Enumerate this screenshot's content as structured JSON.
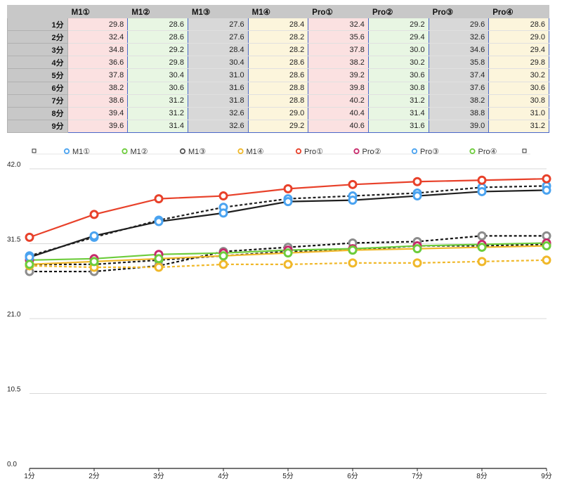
{
  "table": {
    "columns": [
      "",
      "M1①",
      "M1②",
      "M1③",
      "M1④",
      "Pro①",
      "Pro②",
      "Pro③",
      "Pro④"
    ],
    "rows": [
      {
        "label": "1分",
        "values": [
          "29.8",
          "28.6",
          "27.6",
          "28.4",
          "32.4",
          "29.2",
          "29.6",
          "28.6"
        ]
      },
      {
        "label": "2分",
        "values": [
          "32.4",
          "28.6",
          "27.6",
          "28.2",
          "35.6",
          "29.4",
          "32.6",
          "29.0"
        ]
      },
      {
        "label": "3分",
        "values": [
          "34.8",
          "29.2",
          "28.4",
          "28.2",
          "37.8",
          "30.0",
          "34.6",
          "29.4"
        ]
      },
      {
        "label": "4分",
        "values": [
          "36.6",
          "29.8",
          "30.4",
          "28.6",
          "38.2",
          "30.2",
          "35.8",
          "29.8"
        ]
      },
      {
        "label": "5分",
        "values": [
          "37.8",
          "30.4",
          "31.0",
          "28.6",
          "39.2",
          "30.6",
          "37.4",
          "30.2"
        ]
      },
      {
        "label": "6分",
        "values": [
          "38.2",
          "30.6",
          "31.6",
          "28.8",
          "39.8",
          "30.8",
          "37.6",
          "30.6"
        ]
      },
      {
        "label": "7分",
        "values": [
          "38.6",
          "31.2",
          "31.8",
          "28.8",
          "40.2",
          "31.2",
          "38.2",
          "30.8"
        ]
      },
      {
        "label": "8分",
        "values": [
          "39.4",
          "31.2",
          "32.6",
          "29.0",
          "40.4",
          "31.4",
          "38.8",
          "31.0"
        ]
      },
      {
        "label": "9分",
        "values": [
          "39.6",
          "31.4",
          "32.6",
          "29.2",
          "40.6",
          "31.6",
          "39.0",
          "31.2"
        ]
      }
    ]
  },
  "chart_data": {
    "type": "line",
    "categories": [
      "1分",
      "2分",
      "3分",
      "4分",
      "5分",
      "6分",
      "7分",
      "8分",
      "9分"
    ],
    "ylim": [
      0,
      42
    ],
    "yticks": [
      0.0,
      10.5,
      21.0,
      31.5,
      42.0
    ],
    "ytick_labels": [
      "0.0",
      "10.5",
      "21.0",
      "31.5",
      "42.0"
    ],
    "grid": true,
    "legend_position": "top",
    "series": [
      {
        "name": "M1①",
        "color": "#1f1f1f",
        "marker_color": "#4aa3f0",
        "dashed": true,
        "values": [
          29.8,
          32.4,
          34.8,
          36.6,
          37.8,
          38.2,
          38.6,
          39.4,
          39.6
        ]
      },
      {
        "name": "M1②",
        "color": "#1f1f1f",
        "marker_color": "#6dcc3c",
        "dashed": true,
        "values": [
          28.6,
          28.6,
          29.2,
          29.8,
          30.4,
          30.6,
          31.2,
          31.2,
          31.4
        ]
      },
      {
        "name": "M1③",
        "color": "#111111",
        "marker_color": "#8c8c8c",
        "dashed": true,
        "values": [
          27.6,
          27.6,
          28.4,
          30.4,
          31.0,
          31.6,
          31.8,
          32.6,
          32.6
        ]
      },
      {
        "name": "M1④",
        "color": "#f0b82a",
        "marker_color": "#f0b82a",
        "dashed": true,
        "values": [
          28.4,
          28.2,
          28.2,
          28.6,
          28.6,
          28.8,
          28.8,
          29.0,
          29.2
        ]
      },
      {
        "name": "Pro①",
        "color": "#e8412a",
        "marker_color": "#e8412a",
        "dashed": false,
        "values": [
          32.4,
          35.6,
          37.8,
          38.2,
          39.2,
          39.8,
          40.2,
          40.4,
          40.6
        ]
      },
      {
        "name": "Pro②",
        "color": "#6dcc3c",
        "marker_color": "#c72a6b",
        "dashed": false,
        "values": [
          29.2,
          29.4,
          30.0,
          30.2,
          30.6,
          30.8,
          31.2,
          31.4,
          31.6
        ]
      },
      {
        "name": "Pro③",
        "color": "#1f1f1f",
        "marker_color": "#4aa3f0",
        "dashed": false,
        "values": [
          29.6,
          32.6,
          34.6,
          35.8,
          37.4,
          37.6,
          38.2,
          38.8,
          39.0
        ]
      },
      {
        "name": "Pro④",
        "color": "#f0b82a",
        "marker_color": "#6dcc3c",
        "dashed": false,
        "values": [
          28.6,
          29.0,
          29.4,
          29.8,
          30.2,
          30.6,
          30.8,
          31.0,
          31.2
        ]
      }
    ],
    "legend": [
      {
        "label": "M1①",
        "marker_color": "#4aa3f0"
      },
      {
        "label": "M1②",
        "marker_color": "#6dcc3c"
      },
      {
        "label": "M1③",
        "marker_color": "#555555"
      },
      {
        "label": "M1④",
        "marker_color": "#f0b82a"
      },
      {
        "label": "Pro①",
        "marker_color": "#e8412a"
      },
      {
        "label": "Pro②",
        "marker_color": "#c72a6b"
      },
      {
        "label": "Pro③",
        "marker_color": "#4aa3f0"
      },
      {
        "label": "Pro④",
        "marker_color": "#6dcc3c"
      }
    ]
  }
}
